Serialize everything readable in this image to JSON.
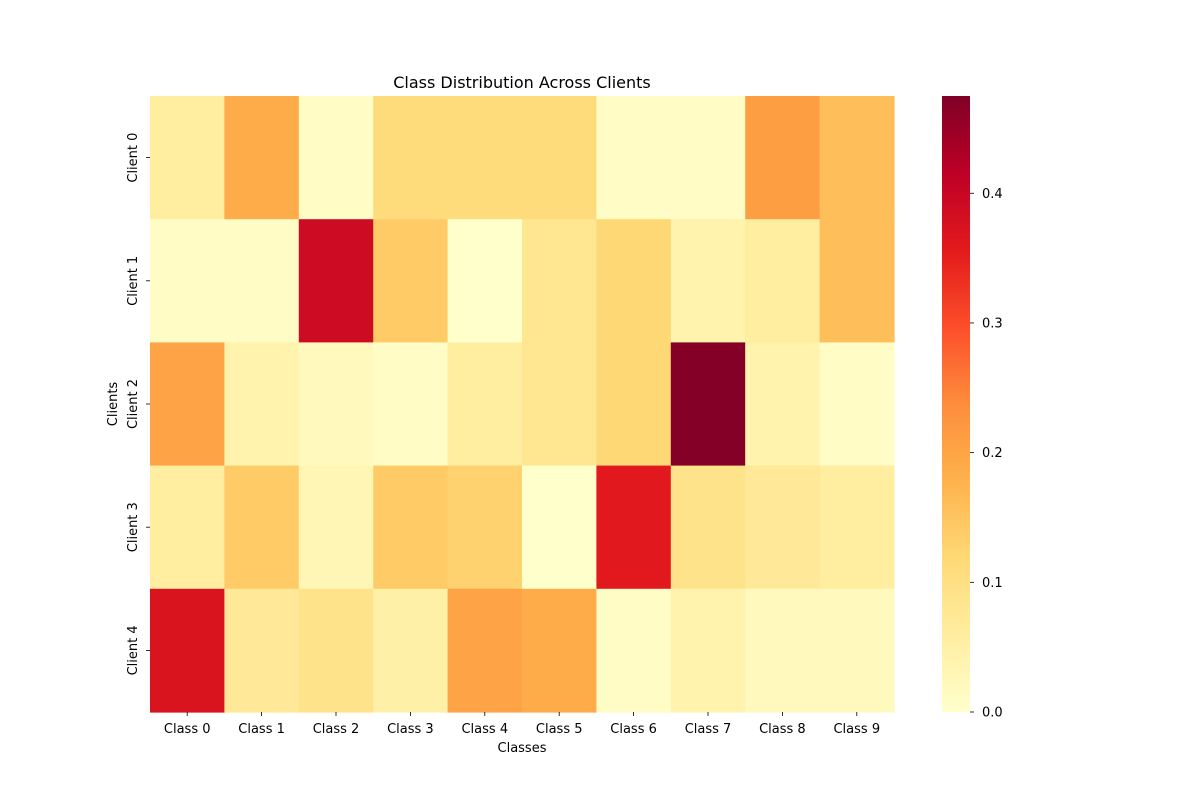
{
  "chart_data": {
    "type": "heatmap",
    "title": "Class Distribution Across Clients",
    "xlabel": "Classes",
    "ylabel": "Clients",
    "x_categories": [
      "Class 0",
      "Class 1",
      "Class 2",
      "Class 3",
      "Class 4",
      "Class 5",
      "Class 6",
      "Class 7",
      "Class 8",
      "Class 9"
    ],
    "y_categories": [
      "Client 0",
      "Client 1",
      "Client 2",
      "Client 3",
      "Client 4"
    ],
    "values": [
      [
        0.06,
        0.19,
        0.01,
        0.11,
        0.11,
        0.11,
        0.01,
        0.01,
        0.21,
        0.16
      ],
      [
        0.01,
        0.01,
        0.39,
        0.14,
        0.0,
        0.08,
        0.12,
        0.04,
        0.06,
        0.16
      ],
      [
        0.2,
        0.04,
        0.02,
        0.01,
        0.06,
        0.08,
        0.12,
        0.47,
        0.04,
        0.01
      ],
      [
        0.06,
        0.14,
        0.03,
        0.14,
        0.13,
        0.0,
        0.36,
        0.09,
        0.07,
        0.06
      ],
      [
        0.37,
        0.07,
        0.09,
        0.05,
        0.2,
        0.19,
        0.01,
        0.04,
        0.02,
        0.02
      ]
    ],
    "colormap": "YlOrRd",
    "colorbar": {
      "range": [
        0.0,
        0.475
      ],
      "ticks": [
        0.0,
        0.1,
        0.2,
        0.3,
        0.4
      ],
      "tick_labels": [
        "0.0",
        "0.1",
        "0.2",
        "0.3",
        "0.4"
      ]
    },
    "grid": false
  }
}
